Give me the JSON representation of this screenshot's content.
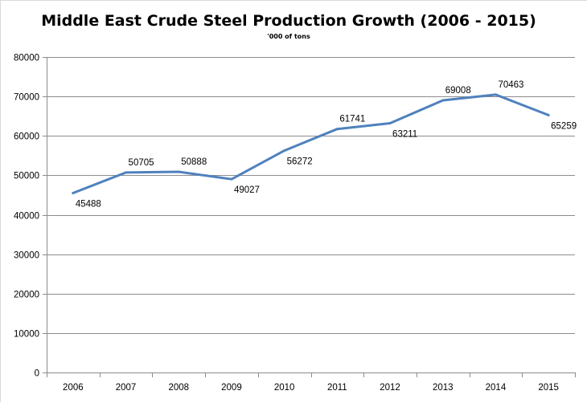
{
  "chart_data": {
    "type": "line",
    "title": "Middle East Crude Steel Production  Growth  (2006 - 2015)",
    "subtitle": "'000 of tons",
    "xlabel": "",
    "ylabel": "",
    "categories": [
      "2006",
      "2007",
      "2008",
      "2009",
      "2010",
      "2011",
      "2012",
      "2013",
      "2014",
      "2015"
    ],
    "series": [
      {
        "values": [
          45488,
          50705,
          50888,
          49027,
          56272,
          61741,
          63211,
          69008,
          70463,
          65259
        ],
        "color": "#4f81bd"
      }
    ],
    "ylim": [
      0,
      80000
    ],
    "yticks": [
      0,
      10000,
      20000,
      30000,
      40000,
      50000,
      60000,
      70000,
      80000
    ],
    "grid": true,
    "legend": "none",
    "data_labels": true
  }
}
